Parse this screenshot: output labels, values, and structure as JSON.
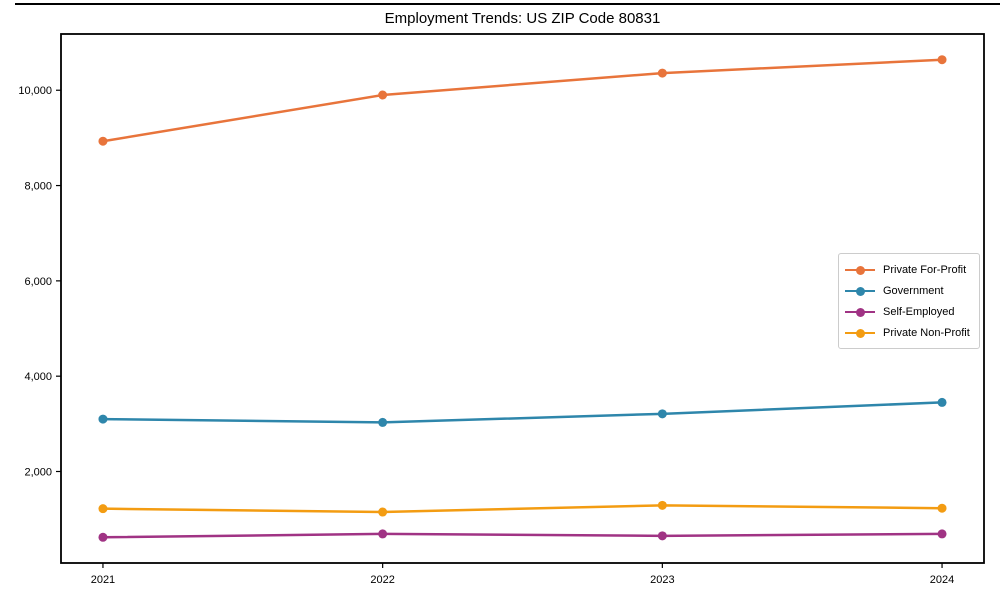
{
  "title": "Employment Trends: US ZIP Code 80831",
  "chart_data": {
    "type": "line",
    "title": "Employment Trends: US ZIP Code 80831",
    "xlabel": "",
    "ylabel": "",
    "x": [
      2021,
      2022,
      2023,
      2024
    ],
    "xtick_labels": [
      "2021",
      "2022",
      "2023",
      "2024"
    ],
    "yticks": [
      2000,
      4000,
      6000,
      8000,
      10000
    ],
    "ytick_labels": [
      "2,000",
      "4,000",
      "6,000",
      "8,000",
      "10,000"
    ],
    "xlim": [
      2020.85,
      2024.15
    ],
    "ylim": [
      80,
      11180
    ],
    "grid": false,
    "legend_position": "center right",
    "marker": "circle",
    "series": [
      {
        "name": "Private For-Profit",
        "color": "#E8743B",
        "values": [
          8930,
          9900,
          10360,
          10640
        ]
      },
      {
        "name": "Government",
        "color": "#2E86AB",
        "values": [
          3100,
          3030,
          3210,
          3450
        ]
      },
      {
        "name": "Self-Employed",
        "color": "#A03384",
        "values": [
          620,
          690,
          650,
          690
        ]
      },
      {
        "name": "Private Non-Profit",
        "color": "#F39C12",
        "values": [
          1220,
          1150,
          1290,
          1230
        ]
      }
    ]
  },
  "colors": {
    "axis": "#000000",
    "legend_border": "#cccccc",
    "background": "#ffffff"
  }
}
